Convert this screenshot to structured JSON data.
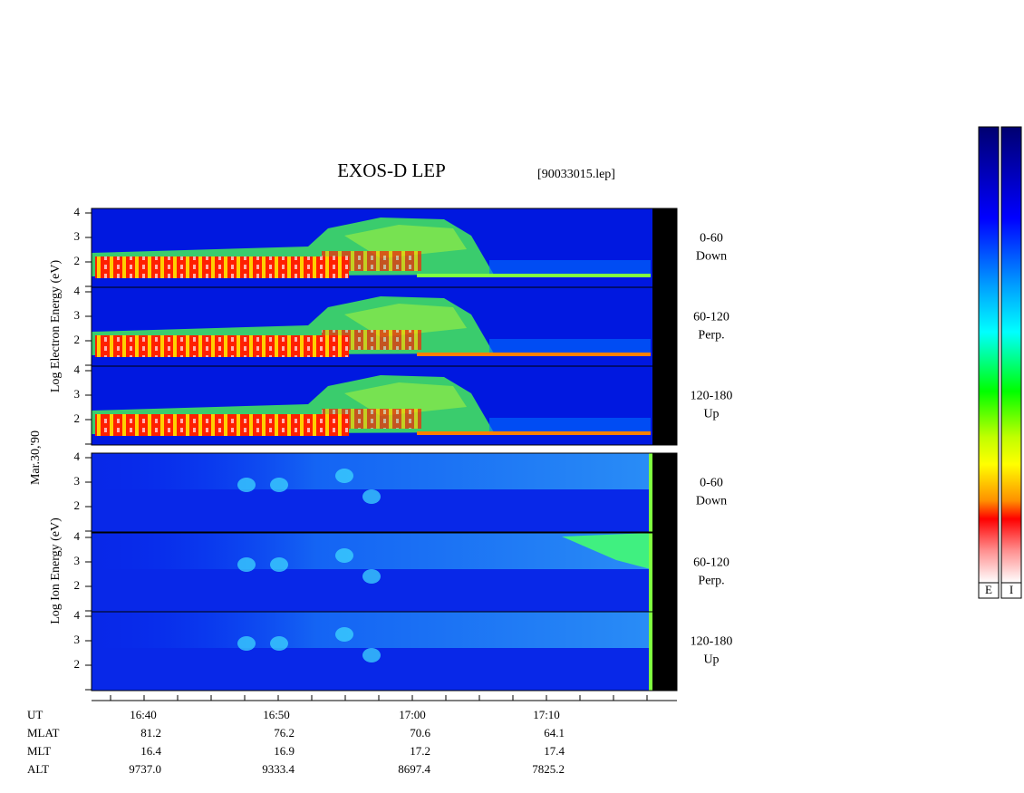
{
  "header": {
    "title": "EXOS-D LEP",
    "file": "[90033015.lep]"
  },
  "axis_labels": {
    "electron": "Log Electron Energy (eV)",
    "date": "Mar.30,'90",
    "ion": "Log Ion Energy (eV)"
  },
  "panels": [
    {
      "kind": "electron",
      "label": [
        "0-60",
        "Down"
      ],
      "yticks": [
        4,
        3,
        2
      ]
    },
    {
      "kind": "electron",
      "label": [
        "60-120",
        "Perp."
      ],
      "yticks": [
        4,
        3,
        2
      ]
    },
    {
      "kind": "electron",
      "label": [
        "120-180",
        "Up"
      ],
      "yticks": [
        4,
        3,
        2
      ]
    },
    {
      "kind": "ion",
      "label": [
        "0-60",
        "Down"
      ],
      "yticks": [
        4,
        3,
        2
      ]
    },
    {
      "kind": "ion",
      "label": [
        "60-120",
        "Perp."
      ],
      "yticks": [
        4,
        3,
        2
      ]
    },
    {
      "kind": "ion",
      "label": [
        "120-180",
        "Up"
      ],
      "yticks": [
        4,
        3,
        2
      ]
    }
  ],
  "time_axis": {
    "rows": [
      {
        "name": "UT",
        "values": [
          "16:40",
          "16:50",
          "17:00",
          "17:10"
        ]
      },
      {
        "name": "MLAT",
        "values": [
          "81.2",
          "76.2",
          "70.6",
          "64.1"
        ]
      },
      {
        "name": "MLT",
        "values": [
          "16.4",
          "16.9",
          "17.2",
          "17.4"
        ]
      },
      {
        "name": "ALT",
        "values": [
          "9737.0",
          "9333.4",
          "8697.4",
          "7825.2"
        ]
      }
    ]
  },
  "colorbars": [
    "E",
    "I"
  ]
}
